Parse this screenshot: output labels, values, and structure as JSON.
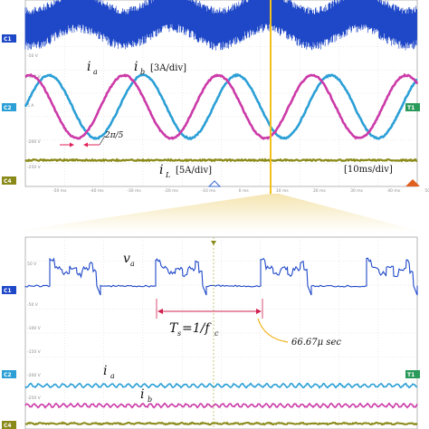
{
  "chart_data": [
    {
      "type": "line",
      "panel": "top",
      "series": [
        {
          "name": "ia",
          "color": "#2b9fd6",
          "period_divs": 2.4,
          "amplitude_divs": 1.35
        },
        {
          "name": "ib",
          "color": "#cc3aa8",
          "period_divs": 2.4,
          "amplitude_divs": 1.35
        },
        {
          "name": "iL",
          "color": "#8a8a1a"
        },
        {
          "name": "va",
          "color": "#1f48c8"
        }
      ],
      "labels": {
        "ia": "i",
        "ia_sub": "a",
        "ib": "i",
        "ib_sub": "b",
        "scale_ab": "[3A/div]",
        "iL": "i",
        "iL_sub": "L",
        "scale_L": "[5A/div]",
        "timebase": "[10ms/div]",
        "phase": "2π/5"
      },
      "time_ticks": [
        "-50 ms",
        "-40 ms",
        "-30 ms",
        "-20 ms",
        "-10 ms",
        "0 ms",
        "10 ms",
        "20 ms",
        "30 ms",
        "40 ms",
        "50 ms"
      ],
      "left_ticks": [
        "50 V",
        "-50 V",
        "-100 V",
        "5 A",
        "-200 V",
        "-250 V"
      ],
      "channel_markers": [
        "C1",
        "C2",
        "C4",
        "T1"
      ]
    },
    {
      "type": "line",
      "panel": "bottom",
      "series": [
        {
          "name": "va",
          "color": "#1f48c8"
        },
        {
          "name": "ia",
          "color": "#2b9fd6"
        },
        {
          "name": "ib",
          "color": "#cc3aa8"
        },
        {
          "name": "iL",
          "color": "#8a8a1a"
        }
      ],
      "labels": {
        "va": "v",
        "va_sub": "a",
        "ia": "i",
        "ia_sub": "a",
        "ib": "i",
        "ib_sub": "b",
        "ts": "T",
        "ts_sub": "s",
        "ts_rest": "=1/f",
        "ts_sub2": "c",
        "period": "66.67μ sec"
      },
      "left_ticks": [
        "50 V",
        "-50 V",
        "-100 V",
        "-150 V",
        "-200 V",
        "-250 V"
      ],
      "channel_markers": [
        "C1",
        "C2",
        "C4",
        "T1"
      ]
    }
  ]
}
